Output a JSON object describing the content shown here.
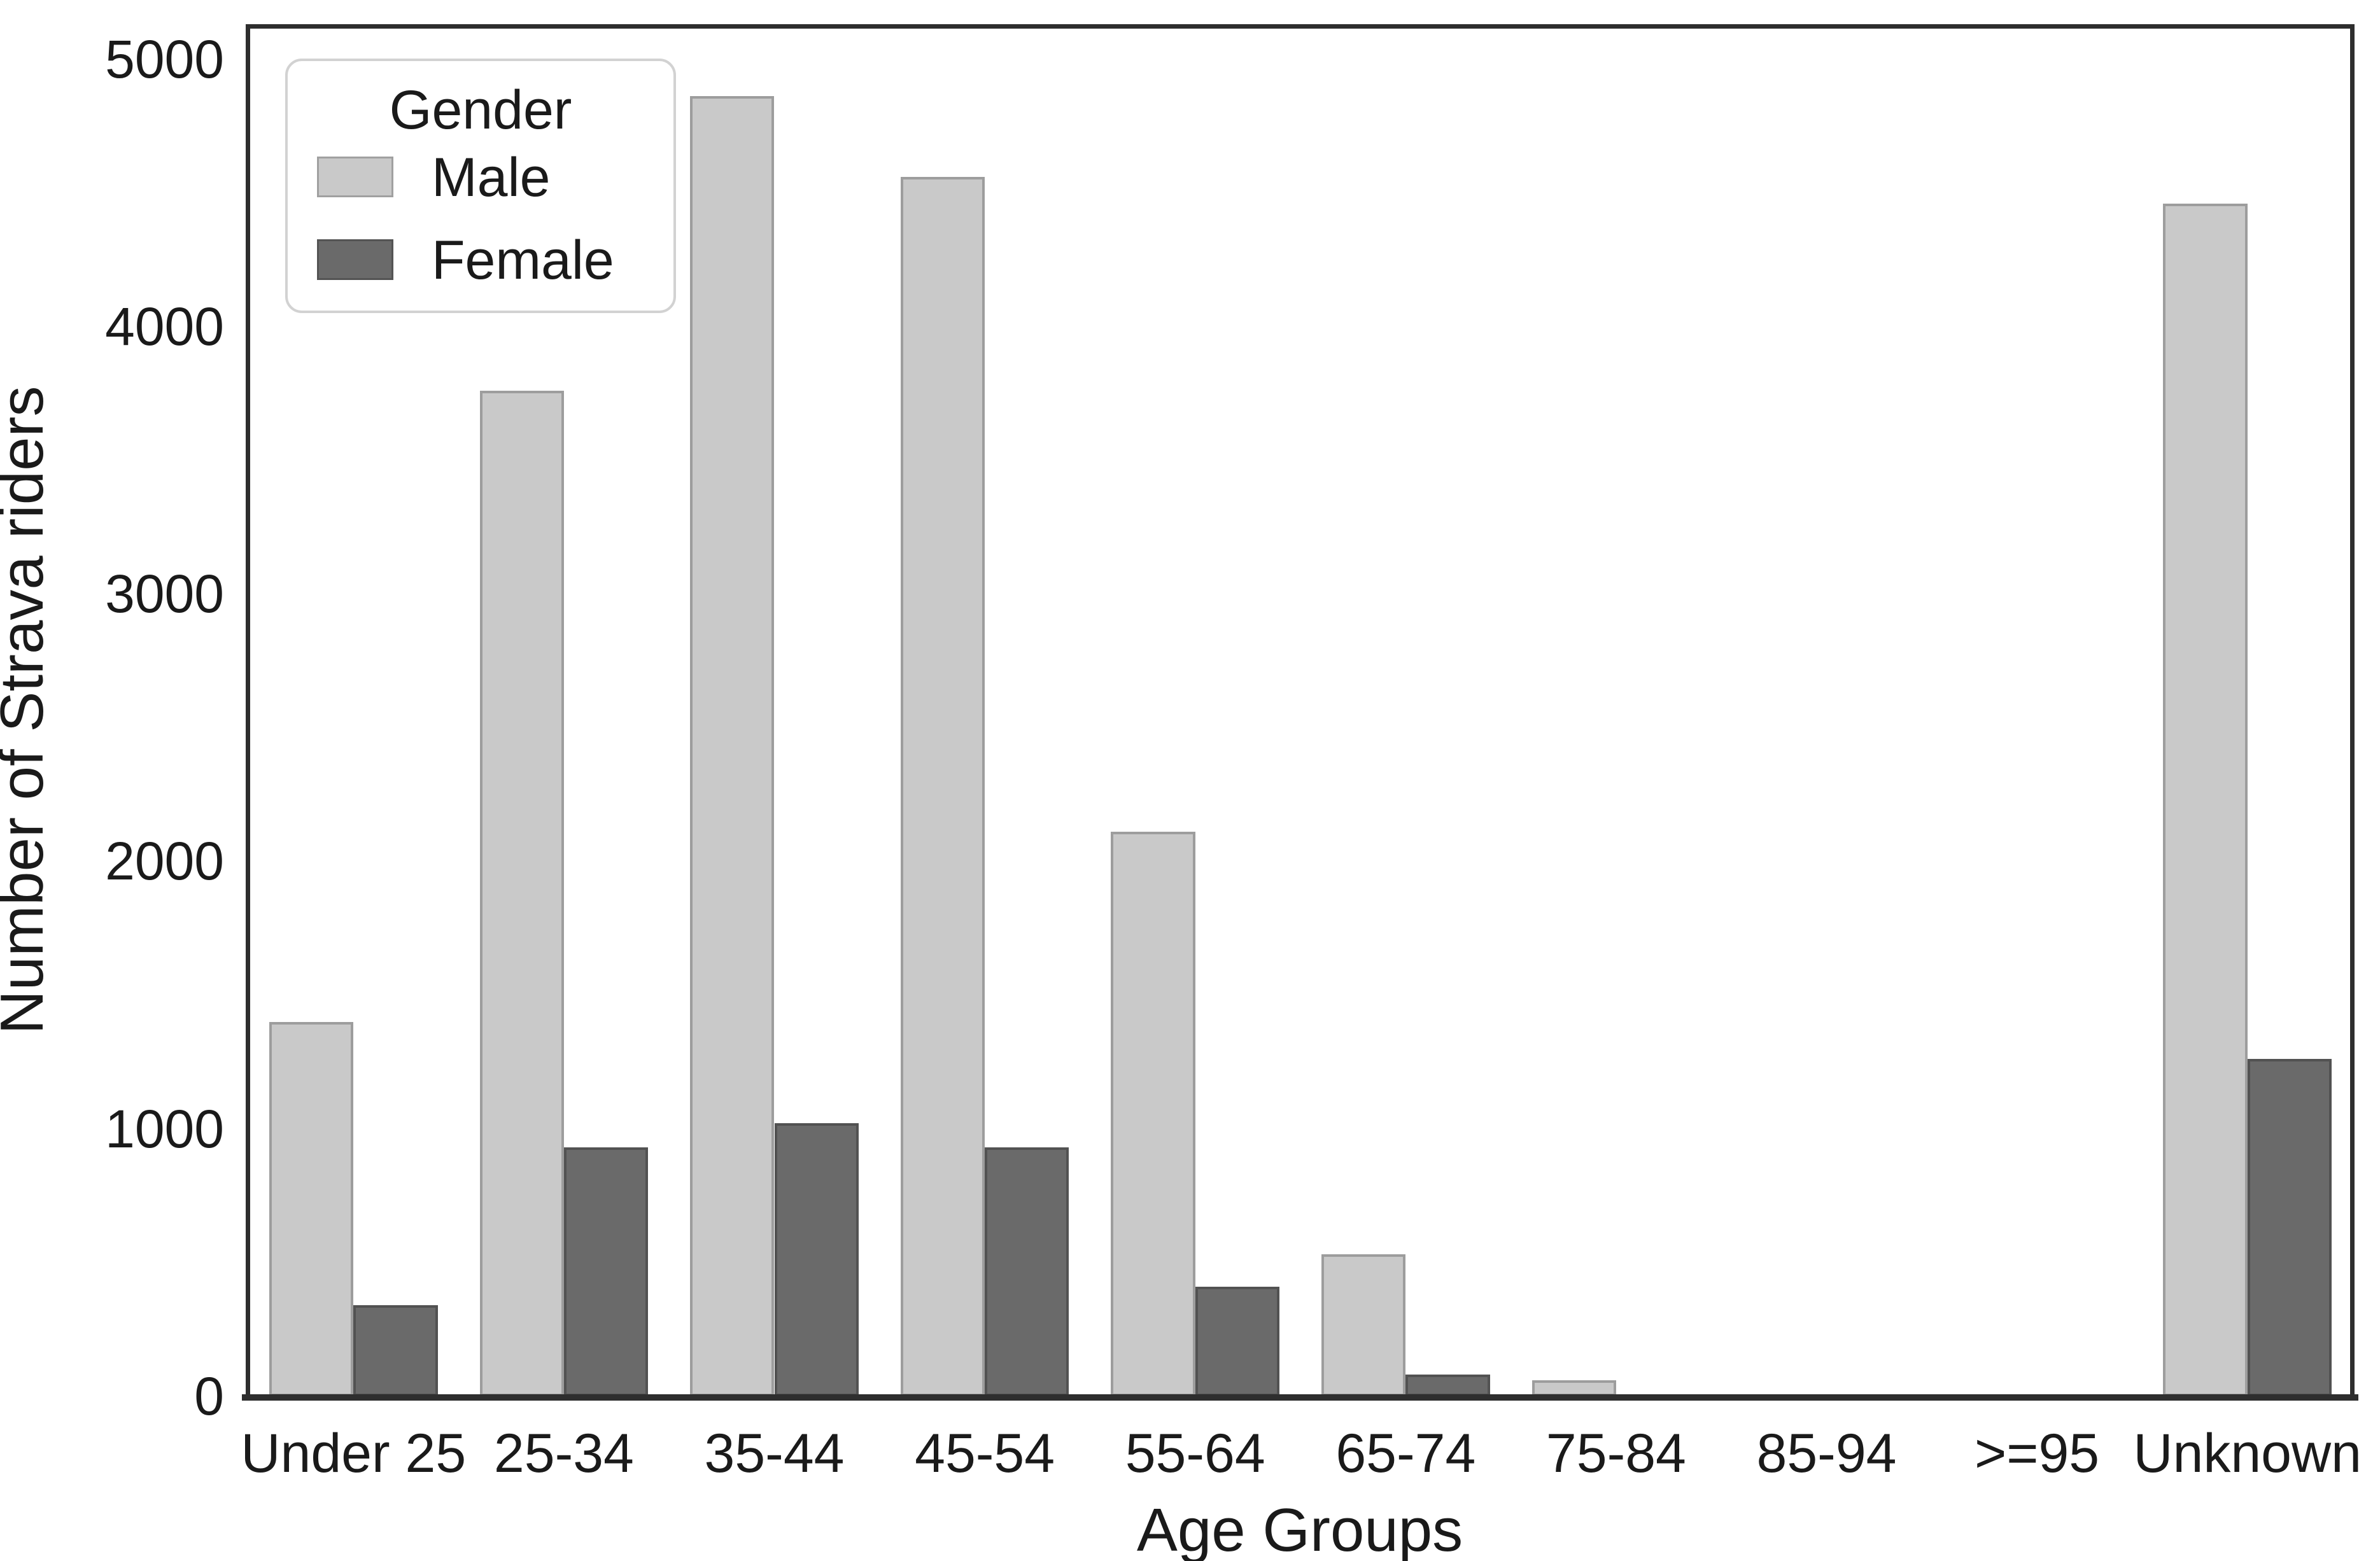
{
  "chart_data": {
    "type": "bar",
    "title": "",
    "xlabel": "Age Groups",
    "ylabel": "Number of Strava riders",
    "categories": [
      "Under 25",
      "25-34",
      "35-44",
      "45-54",
      "55-64",
      "65-74",
      "75-84",
      "85-94",
      ">=95",
      "Unknown"
    ],
    "series": [
      {
        "name": "Male",
        "color": "#c9c9c9",
        "values": [
          1400,
          3760,
          4860,
          4560,
          2110,
          530,
          60,
          0,
          0,
          4460
        ]
      },
      {
        "name": "Female",
        "color": "#6a6a6a",
        "values": [
          340,
          930,
          1020,
          930,
          410,
          80,
          0,
          0,
          0,
          1260
        ]
      }
    ],
    "yticks": [
      0,
      1000,
      2000,
      3000,
      4000,
      5000
    ],
    "ylim": [
      0,
      5130
    ],
    "grid": false,
    "legend": {
      "title": "Gender",
      "position": "upper left"
    },
    "background": "#ffffff",
    "spine_color": "#2e2e2e"
  }
}
